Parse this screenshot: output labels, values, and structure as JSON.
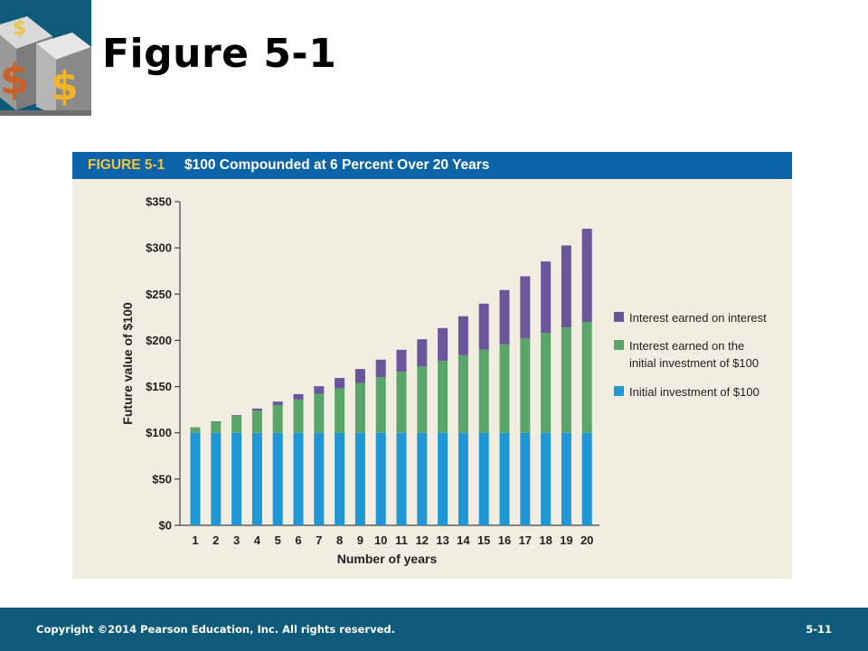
{
  "slide": {
    "title": "Figure 5-1",
    "logo_icon": "dollar-cube-icon"
  },
  "figure": {
    "label": "FIGURE 5-1",
    "caption": "$100 Compounded at 6 Percent Over 20 Years"
  },
  "footer": {
    "copyright": "Copyright ©2014 Pearson Education, Inc. All rights reserved.",
    "page": "5-11"
  },
  "colors": {
    "initial": "#1f97d4",
    "interest_initial": "#5aa66a",
    "interest_on_interest": "#6b569b",
    "header": "#0c64a8",
    "panel": "#f1ede1"
  },
  "chart_data": {
    "type": "bar",
    "stacked": true,
    "xlabel": "Number of years",
    "ylabel": "Future value of $100",
    "ylim": [
      0,
      350
    ],
    "yticks": [
      "$0",
      "$50",
      "$100",
      "$150",
      "$200",
      "$250",
      "$300",
      "$350"
    ],
    "ytick_values": [
      0,
      50,
      100,
      150,
      200,
      250,
      300,
      350
    ],
    "categories": [
      "1",
      "2",
      "3",
      "4",
      "5",
      "6",
      "7",
      "8",
      "9",
      "10",
      "11",
      "12",
      "13",
      "14",
      "15",
      "16",
      "17",
      "18",
      "19",
      "20"
    ],
    "series": [
      {
        "name": "Initial investment of $100",
        "values": [
          100,
          100,
          100,
          100,
          100,
          100,
          100,
          100,
          100,
          100,
          100,
          100,
          100,
          100,
          100,
          100,
          100,
          100,
          100,
          100
        ]
      },
      {
        "name": "Interest earned on the initial investment of $100",
        "legend_lines": [
          "Interest earned on the",
          "initial investment of $100"
        ],
        "values": [
          6,
          12,
          18,
          24,
          30,
          36,
          42,
          48,
          54,
          60,
          66,
          72,
          78,
          84,
          90,
          96,
          102,
          108,
          114,
          120
        ]
      },
      {
        "name": "Interest earned on interest",
        "values": [
          0.0,
          0.4,
          1.1,
          2.2,
          3.8,
          5.9,
          8.4,
          11.4,
          15.0,
          19.1,
          23.8,
          29.2,
          35.3,
          42.1,
          49.7,
          58.4,
          67.3,
          77.3,
          88.6,
          100.7
        ]
      }
    ],
    "legend_order": [
      2,
      1,
      0
    ],
    "legend_position": "right",
    "grid": false
  }
}
